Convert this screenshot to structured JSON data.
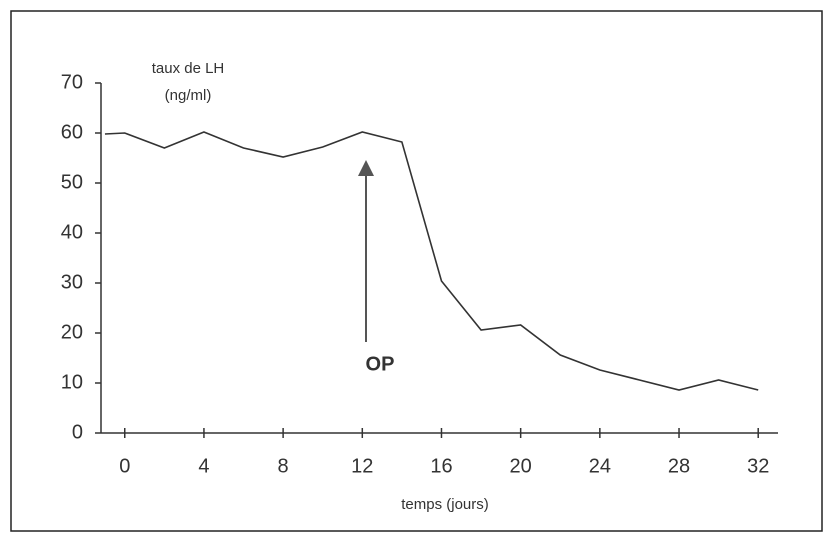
{
  "chart_data": {
    "type": "line",
    "ylabel": [
      "taux de LH",
      "(ng/ml)"
    ],
    "xlabel": "temps (jours)",
    "annotation": "OP",
    "x": [
      -1,
      0,
      2,
      4,
      6,
      8,
      10,
      12,
      14,
      16,
      18,
      20,
      22,
      24,
      26,
      28,
      30,
      32
    ],
    "series": [
      {
        "color": "#333333",
        "values": [
          59.8,
          60,
          57,
          60.2,
          57,
          55.2,
          57.2,
          60.2,
          58.2,
          30.4,
          20.6,
          21.6,
          15.6,
          12.6,
          10.6,
          8.6,
          10.6,
          8.6
        ]
      }
    ],
    "xlim": [
      -1.2,
      33
    ],
    "xticks": [
      0,
      4,
      8,
      12,
      16,
      20,
      24,
      28,
      32
    ],
    "ylim": [
      0,
      70
    ],
    "yticks": [
      0,
      10,
      20,
      30,
      40,
      50,
      60,
      70
    ]
  }
}
